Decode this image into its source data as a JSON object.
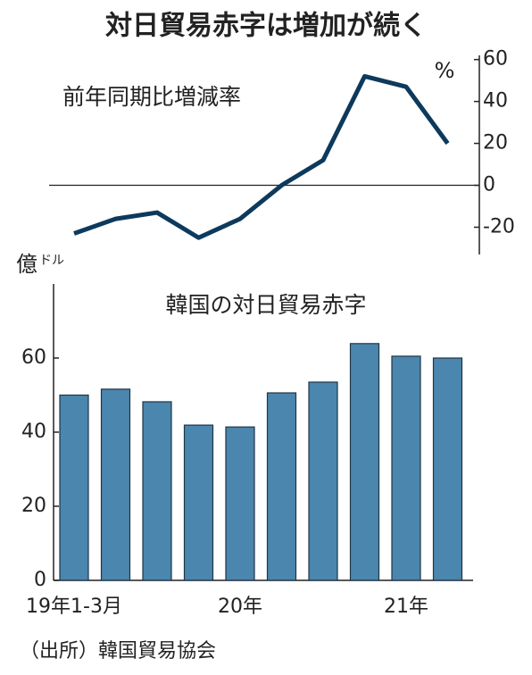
{
  "title": "対日貿易赤字は増加が続く",
  "source": "（出所）韓国貿易協会",
  "chart_data": [
    {
      "type": "line",
      "title": "前年同期比増減率",
      "y_unit": "%",
      "categories": [
        "19年1-3月",
        null,
        null,
        null,
        "20年",
        null,
        null,
        null,
        "21年",
        null
      ],
      "values": [
        -23,
        -16,
        -13,
        -25,
        -16,
        0,
        12,
        52,
        47,
        20
      ],
      "color": "#0d3a5c",
      "ylim": [
        -33,
        62
      ],
      "yticks": [
        60,
        40,
        20,
        0,
        -20
      ]
    },
    {
      "type": "bar",
      "title": "韓国の対日貿易赤字",
      "y_label": {
        "main": "億",
        "sub": "ドル"
      },
      "categories": [
        "19年1-3月",
        null,
        null,
        null,
        "20年",
        null,
        null,
        null,
        "21年",
        null
      ],
      "values": [
        50,
        51.6,
        48.2,
        41.9,
        41.4,
        50.6,
        53.5,
        63.9,
        60.5,
        60
      ],
      "color": "#4a86ad",
      "ylim": [
        0,
        80
      ],
      "yticks": [
        0,
        20,
        40,
        60
      ]
    }
  ]
}
